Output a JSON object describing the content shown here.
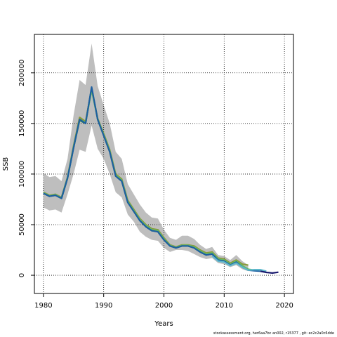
{
  "chart_data": {
    "type": "line",
    "xlabel": "Years",
    "ylabel": "SSB",
    "xlim": [
      1978.5,
      2021.5
    ],
    "ylim": [
      -18000,
      238000
    ],
    "xticks": [
      1980,
      1990,
      2000,
      2010,
      2020
    ],
    "yticks": [
      0,
      50000,
      100000,
      150000,
      200000
    ],
    "grid": true,
    "uncertainty_band": {
      "color": "#bebebe",
      "x": [
        1980,
        1981,
        1982,
        1983,
        1984,
        1985,
        1986,
        1987,
        1988,
        1989,
        1990,
        1991,
        1992,
        1993,
        1994,
        1995,
        1996,
        1997,
        1998,
        1999,
        2000,
        2001,
        2002,
        2003,
        2004,
        2005,
        2006,
        2007,
        2008,
        2009,
        2010,
        2011,
        2012,
        2013,
        2014
      ],
      "lower": [
        67000,
        64000,
        65000,
        62000,
        80000,
        100000,
        124000,
        122000,
        148000,
        125000,
        115000,
        100000,
        82000,
        77000,
        60000,
        53000,
        43000,
        38000,
        35000,
        34000,
        27000,
        23000,
        25000,
        25000,
        24000,
        21000,
        18000,
        16000,
        17000,
        12000,
        11000,
        8000,
        10000,
        6000,
        4000
      ],
      "upper": [
        101000,
        97000,
        98000,
        93000,
        115000,
        158000,
        193000,
        188000,
        229000,
        187000,
        168000,
        150000,
        122000,
        115000,
        90000,
        80000,
        70000,
        62000,
        57000,
        56000,
        45000,
        37000,
        35000,
        39000,
        39000,
        36000,
        30000,
        26000,
        28000,
        20000,
        19000,
        15000,
        20000,
        14000,
        10000
      ]
    },
    "series": [
      {
        "color": "#8a9a3a",
        "x": [
          1980,
          1981,
          1982,
          1983,
          1984,
          1985,
          1986,
          1987,
          1988,
          1989,
          1990,
          1991,
          1992,
          1993,
          1994,
          1995,
          1996,
          1997,
          1998,
          1999,
          2000,
          2001,
          2002,
          2003,
          2004,
          2005,
          2006,
          2007,
          2008,
          2009,
          2010,
          2011,
          2012,
          2013,
          2014
        ],
        "values": [
          82000,
          79000,
          80000,
          77000,
          97000,
          128000,
          156000,
          152000,
          184000,
          155000,
          140000,
          124000,
          100000,
          95000,
          74000,
          65000,
          56000,
          50000,
          46000,
          45000,
          37000,
          30000,
          28000,
          30000,
          30000,
          29000,
          25000,
          22000,
          23000,
          17000,
          16000,
          12000,
          15000,
          11000,
          10000
        ]
      },
      {
        "color": "#2e8b57",
        "x": [
          1980,
          1981,
          1982,
          1983,
          1984,
          1985,
          1986,
          1987,
          1988,
          1989,
          1990,
          1991,
          1992,
          1993,
          1994,
          1995,
          1996,
          1997,
          1998,
          1999,
          2000,
          2001,
          2002,
          2003,
          2004,
          2005,
          2006,
          2007,
          2008,
          2009,
          2010,
          2011,
          2012,
          2013,
          2014
        ],
        "values": [
          81000,
          78000,
          79000,
          76000,
          96000,
          126000,
          153000,
          150000,
          185000,
          154000,
          138000,
          122000,
          98000,
          93000,
          72000,
          63000,
          54000,
          48000,
          44000,
          43000,
          35000,
          29000,
          27000,
          29000,
          29000,
          27000,
          23000,
          20000,
          21000,
          15000,
          14000,
          10000,
          13000,
          8000,
          5000
        ]
      },
      {
        "color": "#66bb66",
        "x": [
          1980,
          1981,
          1982,
          1983,
          1984,
          1985,
          1986,
          1987,
          1988,
          1989,
          1990,
          1991,
          1992,
          1993,
          1994,
          1995,
          1996,
          1997,
          1998,
          1999,
          2000,
          2001,
          2002,
          2003,
          2004,
          2005,
          2006,
          2007,
          2008,
          2009,
          2010,
          2011,
          2012,
          2013,
          2014,
          2015
        ],
        "values": [
          81500,
          78500,
          79500,
          76500,
          96500,
          127000,
          154000,
          151000,
          183000,
          154500,
          139000,
          123000,
          99000,
          94000,
          73000,
          64000,
          55000,
          49000,
          45000,
          44000,
          36000,
          29500,
          27500,
          29500,
          29500,
          28000,
          24000,
          21000,
          22000,
          16000,
          15000,
          11000,
          14000,
          9500,
          6000,
          5000
        ]
      },
      {
        "color": "#1e5fa0",
        "x": [
          1980,
          1981,
          1982,
          1983,
          1984,
          1985,
          1986,
          1987,
          1988,
          1989,
          1990,
          1991,
          1992,
          1993,
          1994,
          1995,
          1996,
          1997,
          1998,
          1999,
          2000,
          2001,
          2002,
          2003,
          2004,
          2005,
          2006,
          2007,
          2008,
          2009,
          2010,
          2011,
          2012,
          2013,
          2014,
          2015,
          2016
        ],
        "values": [
          81000,
          78000,
          79000,
          76000,
          96000,
          126000,
          154000,
          150000,
          186000,
          154000,
          138000,
          122000,
          98000,
          93000,
          72000,
          63000,
          54000,
          48000,
          44000,
          43000,
          35000,
          29000,
          27000,
          29000,
          29000,
          27000,
          23000,
          20000,
          21000,
          15000,
          14000,
          10000,
          13000,
          8000,
          5000,
          4500,
          4000
        ]
      },
      {
        "color": "#5fb8cc",
        "x": [
          2008,
          2009,
          2010,
          2011,
          2012,
          2013,
          2014,
          2015,
          2016,
          2017
        ],
        "values": [
          19000,
          14000,
          13000,
          9500,
          12000,
          8000,
          5000,
          5500,
          5500,
          4000
        ]
      },
      {
        "color": "#1a1a6e",
        "x": [
          2016,
          2017,
          2018,
          2019
        ],
        "values": [
          4000,
          2800,
          2200,
          3000
        ]
      }
    ]
  },
  "footer": "stockassessment.org, her6aa7bc  an002, r15377 ,  git:  ec2c2a0c6dde"
}
